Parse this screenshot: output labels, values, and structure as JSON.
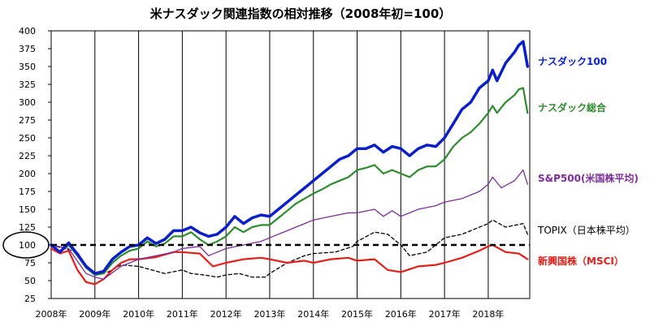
{
  "chart_data": {
    "type": "line",
    "title": "米ナスダック関連指数の相対推移（2008年初=100）",
    "xlabel": "",
    "ylabel": "",
    "ylim": [
      25,
      400
    ],
    "yticks": [
      25,
      50,
      75,
      100,
      125,
      150,
      175,
      200,
      225,
      250,
      275,
      300,
      325,
      350,
      375,
      400
    ],
    "xlim": [
      2008.0,
      2018.95
    ],
    "xticks": [
      {
        "value": 2008,
        "label": "2008年"
      },
      {
        "value": 2009,
        "label": "2009年"
      },
      {
        "value": 2010,
        "label": "2010年"
      },
      {
        "value": 2011,
        "label": "2011年"
      },
      {
        "value": 2012,
        "label": "2012年"
      },
      {
        "value": 2013,
        "label": "2013年"
      },
      {
        "value": 2014,
        "label": "2014年"
      },
      {
        "value": 2015,
        "label": "2015年"
      },
      {
        "value": 2016,
        "label": "2016年"
      },
      {
        "value": 2017,
        "label": "2017年"
      },
      {
        "value": 2018,
        "label": "2018年"
      }
    ],
    "baseline": 100,
    "grid": "vertical-yearly",
    "series": [
      {
        "name": "ナスダック100",
        "color": "#0a1fc8",
        "style": "solid",
        "weight": "thick",
        "x": [
          2008.0,
          2008.2,
          2008.4,
          2008.6,
          2008.8,
          2009.0,
          2009.2,
          2009.4,
          2009.6,
          2009.8,
          2010.0,
          2010.2,
          2010.4,
          2010.6,
          2010.8,
          2011.0,
          2011.2,
          2011.4,
          2011.6,
          2011.8,
          2012.0,
          2012.2,
          2012.4,
          2012.6,
          2012.8,
          2013.0,
          2013.2,
          2013.4,
          2013.6,
          2013.8,
          2014.0,
          2014.2,
          2014.4,
          2014.6,
          2014.8,
          2015.0,
          2015.2,
          2015.4,
          2015.6,
          2015.8,
          2016.0,
          2016.2,
          2016.4,
          2016.6,
          2016.8,
          2017.0,
          2017.2,
          2017.4,
          2017.6,
          2017.8,
          2018.0,
          2018.1,
          2018.2,
          2018.4,
          2018.6,
          2018.7,
          2018.8,
          2018.9
        ],
        "y": [
          100,
          90,
          103,
          87,
          70,
          60,
          63,
          80,
          90,
          98,
          100,
          110,
          102,
          108,
          120,
          120,
          125,
          117,
          112,
          115,
          125,
          140,
          130,
          138,
          142,
          140,
          150,
          160,
          170,
          180,
          190,
          200,
          210,
          220,
          225,
          235,
          235,
          240,
          230,
          238,
          235,
          225,
          235,
          240,
          238,
          250,
          270,
          290,
          300,
          320,
          330,
          345,
          330,
          355,
          370,
          380,
          385,
          350
        ]
      },
      {
        "name": "ナスダック総合",
        "color": "#2e8b2e",
        "style": "solid",
        "weight": "medium",
        "x": [
          2008.0,
          2008.2,
          2008.4,
          2008.6,
          2008.8,
          2009.0,
          2009.2,
          2009.4,
          2009.6,
          2009.8,
          2010.0,
          2010.2,
          2010.4,
          2010.6,
          2010.8,
          2011.0,
          2011.2,
          2011.4,
          2011.6,
          2011.8,
          2012.0,
          2012.2,
          2012.4,
          2012.6,
          2012.8,
          2013.0,
          2013.2,
          2013.4,
          2013.6,
          2013.8,
          2014.0,
          2014.2,
          2014.4,
          2014.6,
          2014.8,
          2015.0,
          2015.2,
          2015.4,
          2015.6,
          2015.8,
          2016.0,
          2016.2,
          2016.4,
          2016.6,
          2016.8,
          2017.0,
          2017.2,
          2017.4,
          2017.6,
          2017.8,
          2018.0,
          2018.1,
          2018.2,
          2018.4,
          2018.6,
          2018.7,
          2018.8,
          2018.9
        ],
        "y": [
          100,
          90,
          100,
          85,
          68,
          58,
          60,
          75,
          85,
          92,
          95,
          105,
          98,
          102,
          112,
          112,
          118,
          108,
          100,
          105,
          112,
          125,
          118,
          125,
          128,
          128,
          138,
          148,
          158,
          165,
          172,
          178,
          185,
          190,
          195,
          205,
          208,
          212,
          200,
          205,
          200,
          195,
          205,
          210,
          210,
          220,
          238,
          250,
          258,
          270,
          285,
          295,
          285,
          300,
          310,
          318,
          320,
          285
        ]
      },
      {
        "name": "S&P500(米国株平均)",
        "color": "#7b2d9a",
        "style": "solid",
        "weight": "thin",
        "x": [
          2008.0,
          2008.4,
          2008.8,
          2009.0,
          2009.2,
          2009.6,
          2010.0,
          2010.4,
          2010.8,
          2011.0,
          2011.4,
          2011.6,
          2011.8,
          2012.0,
          2012.4,
          2012.8,
          2013.0,
          2013.4,
          2013.8,
          2014.0,
          2014.4,
          2014.8,
          2015.0,
          2015.4,
          2015.6,
          2015.8,
          2016.0,
          2016.4,
          2016.8,
          2017.0,
          2017.4,
          2017.8,
          2018.0,
          2018.1,
          2018.3,
          2018.6,
          2018.8,
          2018.9
        ],
        "y": [
          100,
          95,
          60,
          55,
          52,
          70,
          80,
          85,
          90,
          95,
          98,
          85,
          90,
          95,
          100,
          105,
          110,
          120,
          130,
          135,
          140,
          145,
          145,
          150,
          140,
          148,
          140,
          150,
          155,
          160,
          165,
          175,
          185,
          195,
          180,
          190,
          205,
          185
        ]
      },
      {
        "name": "TOPIX（日本株平均）",
        "color": "#000000",
        "style": "dashed",
        "weight": "thin",
        "x": [
          2008.0,
          2008.3,
          2008.6,
          2008.8,
          2009.0,
          2009.3,
          2009.6,
          2010.0,
          2010.3,
          2010.6,
          2011.0,
          2011.2,
          2011.5,
          2011.8,
          2012.0,
          2012.3,
          2012.6,
          2012.9,
          2013.0,
          2013.4,
          2013.8,
          2014.0,
          2014.5,
          2014.9,
          2015.0,
          2015.4,
          2015.7,
          2016.0,
          2016.2,
          2016.6,
          2016.9,
          2017.0,
          2017.4,
          2017.8,
          2018.0,
          2018.1,
          2018.4,
          2018.8,
          2018.9
        ],
        "y": [
          100,
          95,
          90,
          70,
          60,
          62,
          72,
          70,
          65,
          60,
          65,
          60,
          58,
          55,
          58,
          60,
          55,
          55,
          60,
          75,
          85,
          88,
          90,
          98,
          105,
          118,
          115,
          100,
          85,
          90,
          105,
          110,
          115,
          125,
          130,
          135,
          125,
          130,
          115
        ]
      },
      {
        "name": "新興国株（MSCI）",
        "color": "#e0201a",
        "style": "solid",
        "weight": "medium",
        "x": [
          2008.0,
          2008.2,
          2008.4,
          2008.6,
          2008.8,
          2009.0,
          2009.2,
          2009.4,
          2009.6,
          2009.8,
          2010.0,
          2010.4,
          2010.8,
          2011.0,
          2011.4,
          2011.7,
          2012.0,
          2012.4,
          2012.8,
          2013.0,
          2013.4,
          2013.8,
          2014.0,
          2014.4,
          2014.8,
          2015.0,
          2015.4,
          2015.7,
          2016.0,
          2016.4,
          2016.8,
          2017.0,
          2017.4,
          2017.8,
          2018.0,
          2018.1,
          2018.4,
          2018.7,
          2018.9
        ],
        "y": [
          95,
          88,
          92,
          65,
          48,
          45,
          52,
          65,
          75,
          80,
          80,
          83,
          90,
          90,
          88,
          70,
          75,
          80,
          82,
          80,
          75,
          78,
          75,
          80,
          82,
          78,
          80,
          65,
          62,
          70,
          72,
          75,
          82,
          92,
          98,
          100,
          90,
          88,
          80
        ]
      }
    ],
    "series_labels": [
      {
        "text": "ナスダック100",
        "color": "#0a1fc8"
      },
      {
        "text": "ナスダック総合",
        "color": "#2e8b2e"
      },
      {
        "text": "S&P500(米国株平均)",
        "color": "#7b2d9a"
      },
      {
        "text": "TOPIX（日本株平均）",
        "color": "#000000"
      },
      {
        "text": "新興国株（MSCI）",
        "color": "#e0201a"
      }
    ]
  }
}
